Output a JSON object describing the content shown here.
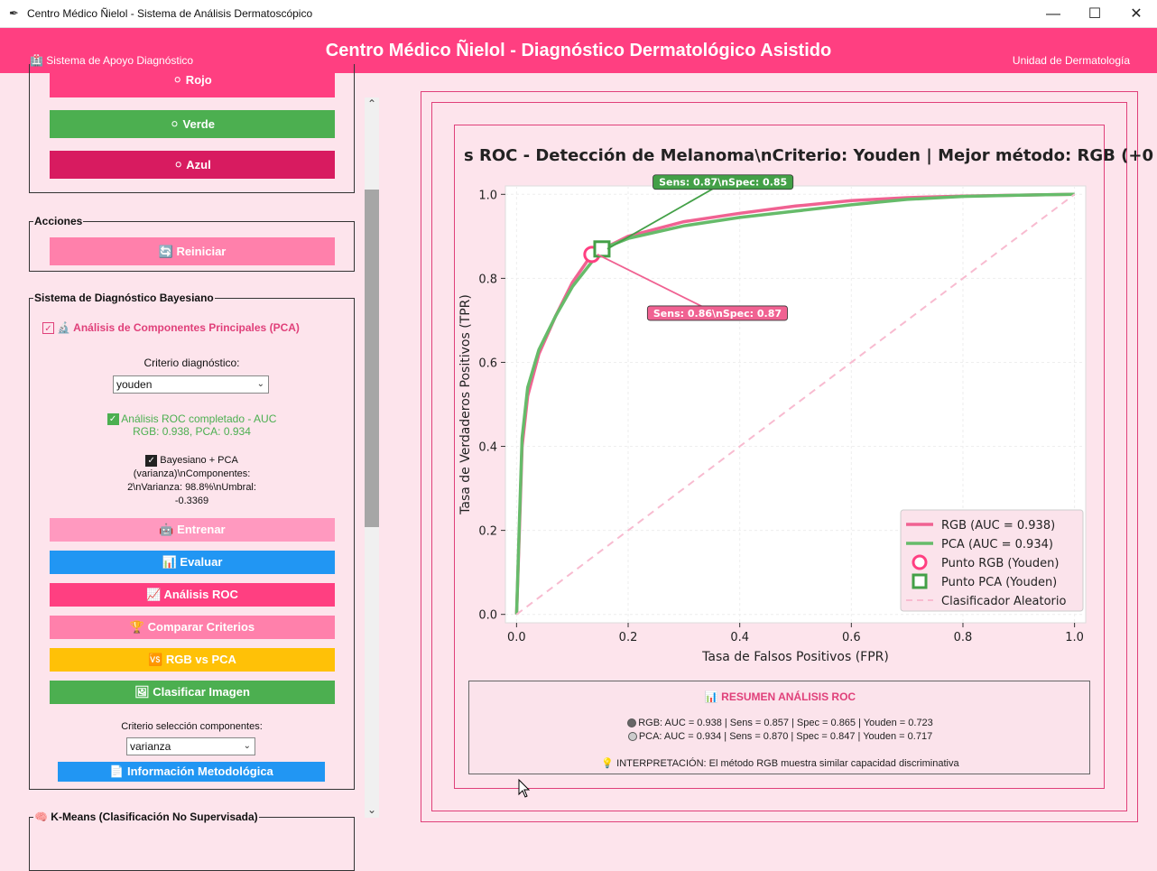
{
  "window": {
    "title": "Centro Médico Ñielol - Sistema de Análisis Dermatoscópico",
    "minimize": "—",
    "maximize": "☐",
    "close": "✕"
  },
  "header": {
    "left_label": "🏥 Sistema de Apoyo Diagnóstico",
    "title": "Centro Médico Ñielol - Diagnóstico Dermatológico Asistido",
    "right_label": "Unidad de Dermatología"
  },
  "channels": {
    "red": "⚪ Rojo",
    "green": "⚪ Verde",
    "blue": "⚪ Azul"
  },
  "actions": {
    "legend": "Acciones",
    "reset": "🔄 Reiniciar"
  },
  "bayes": {
    "legend": "Sistema de Diagnóstico Bayesiano",
    "pca_checkbox": "🔬 Análisis de Componentes Principales (PCA)",
    "criterion_label": "Criterio diagnóstico:",
    "criterion_value": "youden",
    "roc_status_1": "Análisis ROC completado - AUC",
    "roc_status_2": "RGB: 0.938, PCA: 0.934",
    "model_status": [
      "Bayesiano + PCA",
      "(varianza)\\nComponentes:",
      "2\\nVarianza: 98.8%\\nUmbral:",
      "-0.3369"
    ],
    "train": "🤖 Entrenar",
    "evaluate": "📊 Evaluar",
    "roc": "📈 Análisis ROC",
    "compare": "🏆 Comparar Criterios",
    "rgb_vs_pca": "🆚 RGB vs PCA",
    "classify": "🖼    Clasificar Imagen",
    "component_label": "Criterio selección componentes:",
    "component_value": "varianza",
    "info": "📄 Información Metodológica"
  },
  "kmeans": {
    "legend": "🧠 K-Means (Clasificación No Supervisada)"
  },
  "colors": {
    "accent": "#ff3f81",
    "rgb_line": "#f06292",
    "pca_line": "#66bb6a",
    "random_line": "#f8bbd0"
  },
  "chart_data": {
    "type": "line",
    "title": "s ROC - Detección de Melanoma\\nCriterio: Youden | Mejor método: RGB (+0",
    "xlabel": "Tasa de Falsos Positivos (FPR)",
    "ylabel": "Tasa de Verdaderos Positivos (TPR)",
    "xlim": [
      -0.02,
      1.02
    ],
    "ylim": [
      -0.02,
      1.02
    ],
    "xticks": [
      "0.0",
      "0.2",
      "0.4",
      "0.6",
      "0.8",
      "1.0"
    ],
    "yticks": [
      "0.0",
      "0.2",
      "0.4",
      "0.6",
      "0.8",
      "1.0"
    ],
    "grid": true,
    "legend_position": "lower-right",
    "series": [
      {
        "name": "RGB (AUC = 0.938)",
        "x": [
          0,
          0.005,
          0.01,
          0.02,
          0.04,
          0.07,
          0.1,
          0.135,
          0.2,
          0.3,
          0.4,
          0.5,
          0.6,
          0.7,
          0.8,
          0.9,
          1.0
        ],
        "y": [
          0,
          0.2,
          0.4,
          0.52,
          0.62,
          0.71,
          0.79,
          0.857,
          0.9,
          0.935,
          0.955,
          0.972,
          0.985,
          0.992,
          0.996,
          0.998,
          1.0
        ]
      },
      {
        "name": "PCA (AUC = 0.934)",
        "x": [
          0,
          0.005,
          0.01,
          0.02,
          0.04,
          0.07,
          0.1,
          0.153,
          0.2,
          0.3,
          0.4,
          0.5,
          0.6,
          0.7,
          0.8,
          0.9,
          1.0
        ],
        "y": [
          0,
          0.22,
          0.42,
          0.54,
          0.63,
          0.71,
          0.78,
          0.87,
          0.895,
          0.925,
          0.945,
          0.96,
          0.975,
          0.988,
          0.995,
          0.998,
          1.0
        ]
      },
      {
        "name": "Clasificador Aleatorio",
        "x": [
          0,
          1
        ],
        "y": [
          0,
          1
        ]
      }
    ],
    "points": [
      {
        "name": "Punto RGB (Youden)",
        "x": 0.135,
        "y": 0.857,
        "annotation": "Sens: 0.86\\nSpec: 0.87"
      },
      {
        "name": "Punto PCA (Youden)",
        "x": 0.153,
        "y": 0.87,
        "annotation": "Sens: 0.87\\nSpec: 0.85"
      }
    ]
  },
  "summary": {
    "title": "📊 RESUMEN ANÁLISIS ROC",
    "rgb": "RGB: AUC = 0.938 | Sens = 0.857 | Spec = 0.865 | Youden = 0.723",
    "pca": "PCA: AUC = 0.934 | Sens = 0.870 | Spec = 0.847 | Youden = 0.717",
    "interpretation": "💡 INTERPRETACIÓN: El método RGB muestra similar capacidad discriminativa"
  }
}
